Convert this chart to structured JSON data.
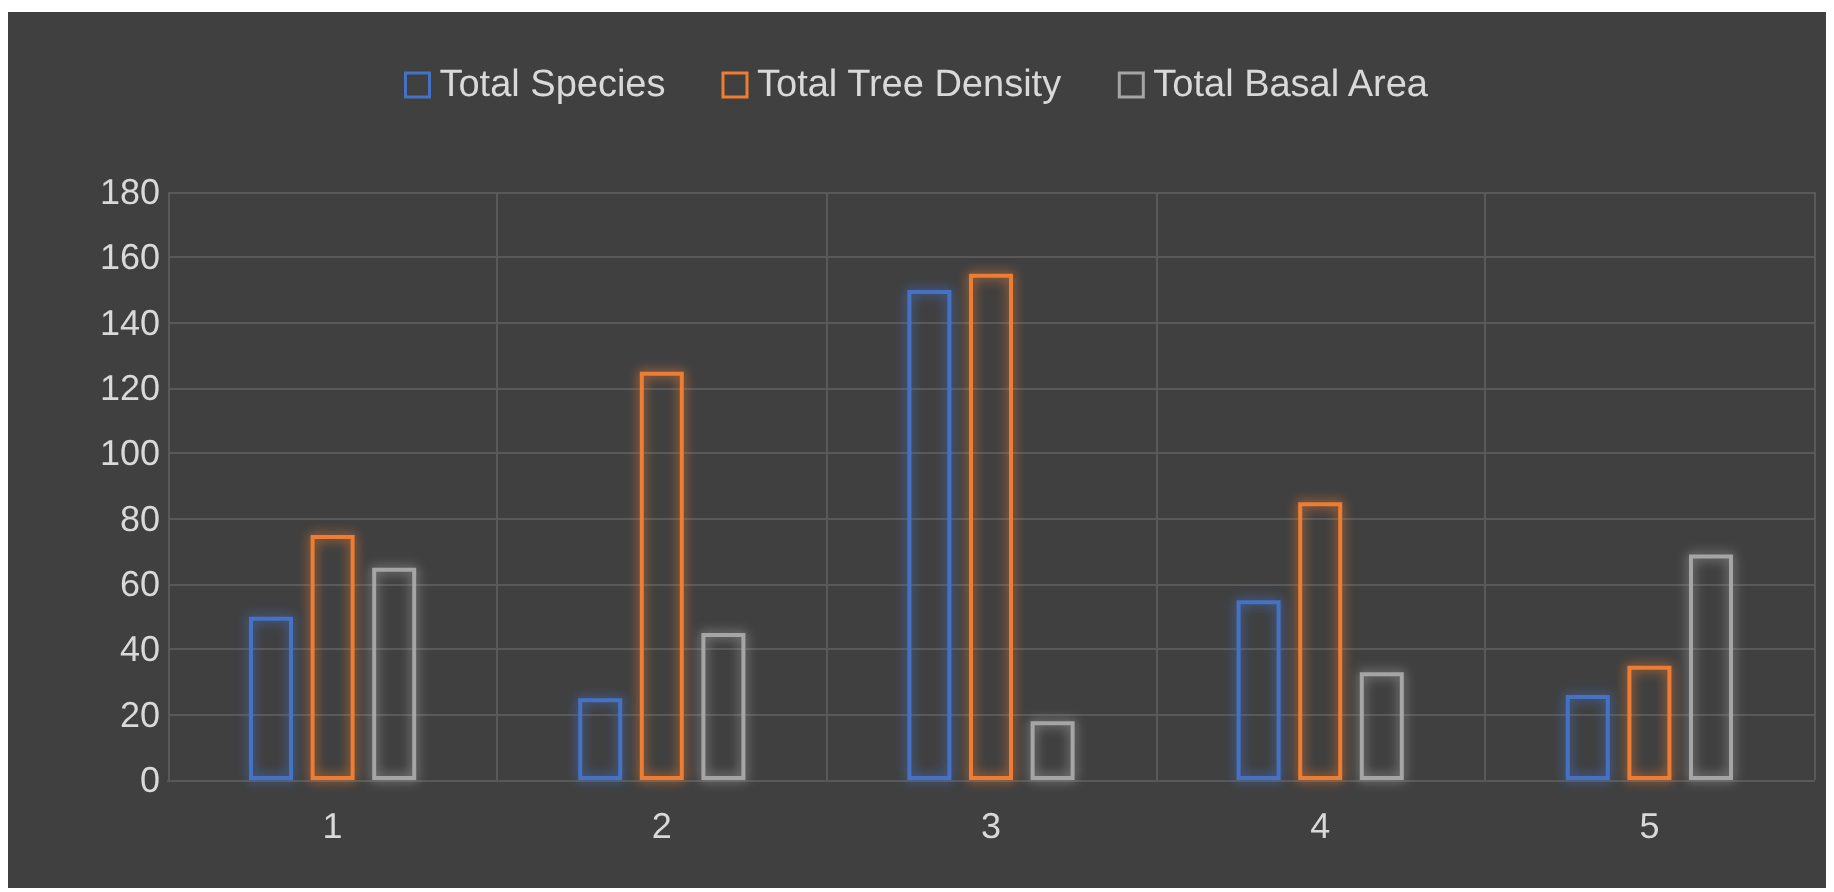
{
  "chart_data": {
    "type": "bar",
    "categories": [
      "1",
      "2",
      "3",
      "4",
      "5"
    ],
    "series": [
      {
        "name": "Total Species",
        "color": "#4472c4",
        "values": [
          50,
          25,
          150,
          55,
          26
        ]
      },
      {
        "name": "Total Tree Density",
        "color": "#ed7d31",
        "values": [
          75,
          125,
          155,
          85,
          35
        ]
      },
      {
        "name": "Total Basal Area",
        "color": "#a5a5a5",
        "values": [
          65,
          45,
          18,
          33,
          69
        ]
      }
    ],
    "ylim": [
      0,
      180
    ],
    "yticks": [
      0,
      20,
      40,
      60,
      80,
      100,
      120,
      140,
      160,
      180
    ],
    "grid": true,
    "legend": "top"
  }
}
